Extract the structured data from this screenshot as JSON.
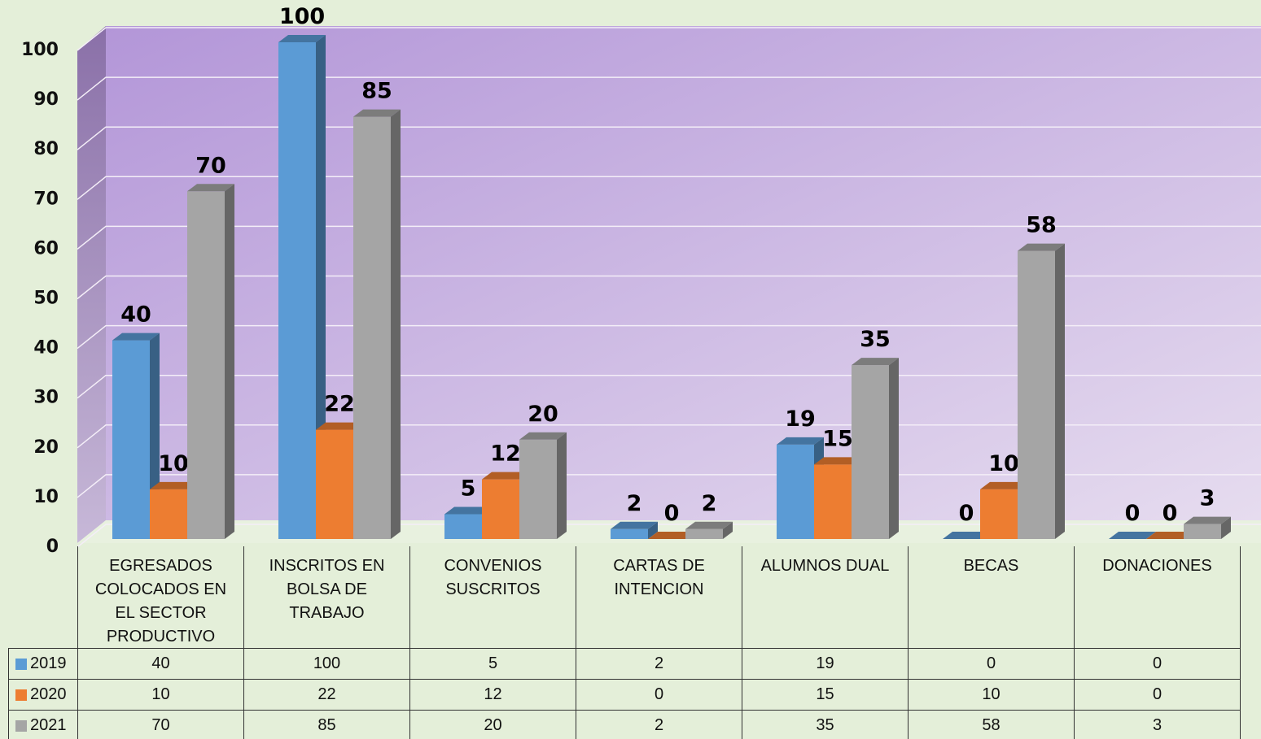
{
  "chart_data": {
    "type": "bar",
    "categories": [
      "EGRESADOS COLOCADOS EN EL SECTOR PRODUCTIVO",
      "INSCRITOS EN BOLSA DE TRABAJO",
      "CONVENIOS SUSCRITOS",
      "CARTAS DE INTENCION",
      "ALUMNOS DUAL",
      "BECAS",
      "DONACIONES"
    ],
    "series": [
      {
        "name": "2019",
        "color": "#5b9bd5",
        "values": [
          40,
          100,
          5,
          2,
          19,
          0,
          0
        ]
      },
      {
        "name": "2020",
        "color": "#ed7d31",
        "values": [
          10,
          22,
          12,
          0,
          15,
          10,
          0
        ]
      },
      {
        "name": "2021",
        "color": "#a5a5a5",
        "values": [
          70,
          85,
          20,
          2,
          35,
          58,
          3
        ]
      }
    ],
    "ylim": [
      0,
      100
    ],
    "yticks": [
      0,
      10,
      20,
      30,
      40,
      50,
      60,
      70,
      80,
      90,
      100
    ],
    "grid": true
  }
}
